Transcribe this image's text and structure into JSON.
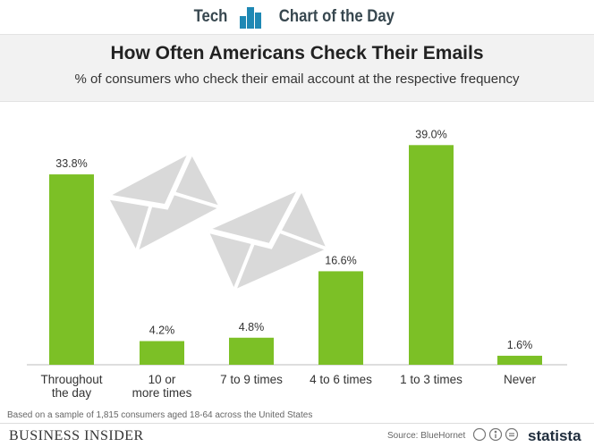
{
  "header": {
    "left_label": "Tech",
    "right_label": "Chart of the Day",
    "accent_color": "#1e88b4"
  },
  "chart_data": {
    "type": "bar",
    "title": "How Often Americans Check Their Emails",
    "subtitle": "% of consumers who check their email account at the respective frequency",
    "categories": [
      [
        "Throughout",
        "the day"
      ],
      [
        "10 or",
        "more times"
      ],
      [
        "7 to 9 times"
      ],
      [
        "4 to 6 times"
      ],
      [
        "1 to 3 times"
      ],
      [
        "Never"
      ]
    ],
    "values": [
      33.8,
      4.2,
      4.8,
      16.6,
      39.0,
      1.6
    ],
    "value_labels": [
      "33.8%",
      "4.2%",
      "4.8%",
      "16.6%",
      "39.0%",
      "1.6%"
    ],
    "bar_color": "#7cc026",
    "ylim": [
      0,
      40
    ],
    "grid": false,
    "legend": "none",
    "decoration": "envelope-icons"
  },
  "footer": {
    "note": "Based on a sample of 1,815 consumers aged 18-64 across the United States",
    "publisher": "BUSINESS INSIDER",
    "source": "Source: BlueHornet",
    "brand": "statista"
  }
}
